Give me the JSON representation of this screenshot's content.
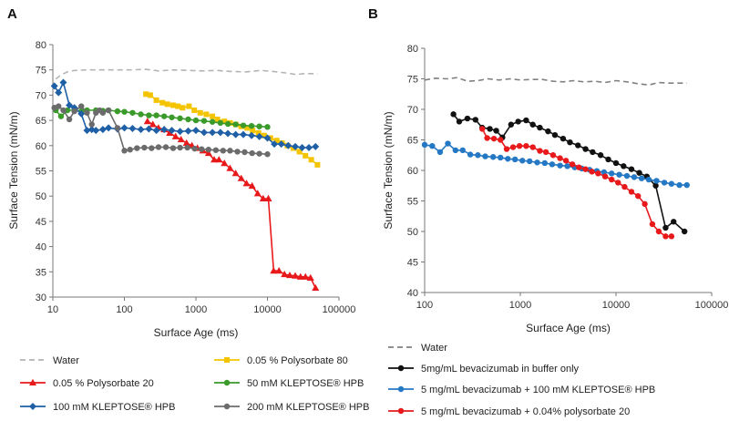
{
  "chart_data": [
    {
      "type": "line",
      "panel_label": "A",
      "xlabel": "Surface Age (ms)",
      "ylabel": "Surface Tension (mN/m)",
      "x_scale": "log",
      "xlim": [
        10,
        100000
      ],
      "ylim": [
        30,
        80
      ],
      "x_ticks": [
        10,
        100,
        1000,
        10000,
        100000
      ],
      "x_tick_labels": [
        "10",
        "100",
        "1000",
        "10000",
        "100000"
      ],
      "y_ticks": [
        30,
        35,
        40,
        45,
        50,
        55,
        60,
        65,
        70,
        75,
        80
      ],
      "y_tick_labels": [
        "30",
        "35",
        "40",
        "45",
        "50",
        "55",
        "60",
        "65",
        "70",
        "75",
        "80"
      ],
      "grid": false,
      "legend_position": "below",
      "series": [
        {
          "name": "Water",
          "color": "#b4b4b4",
          "style": "dashed",
          "marker": "none",
          "x": [
            11,
            13,
            16,
            20,
            30,
            50,
            80,
            120,
            200,
            300,
            500,
            800,
            1200,
            2000,
            3000,
            5000,
            8000,
            12000,
            18000,
            25000,
            35000,
            50000
          ],
          "y": [
            73.2,
            74.0,
            74.6,
            74.9,
            75.0,
            75.0,
            75.0,
            75.0,
            75.1,
            74.8,
            75.0,
            74.9,
            74.8,
            74.9,
            74.7,
            74.6,
            74.9,
            74.7,
            74.4,
            74.1,
            74.3,
            74.2
          ]
        },
        {
          "name": "0.05 % Polysorbate 80",
          "color": "#f5c400",
          "style": "solid",
          "marker": "square",
          "x": [
            200,
            230,
            280,
            340,
            400,
            480,
            560,
            650,
            800,
            950,
            1150,
            1400,
            1700,
            2000,
            2500,
            3000,
            3600,
            4300,
            5200,
            6200,
            7500,
            9000,
            11000,
            13500,
            16000,
            19000,
            23000,
            28000,
            34000,
            41000,
            50000
          ],
          "y": [
            70.2,
            70.0,
            69.0,
            68.5,
            68.2,
            68.0,
            67.8,
            67.5,
            67.8,
            67.0,
            66.5,
            66.2,
            65.8,
            65.2,
            64.8,
            64.5,
            64.2,
            63.8,
            63.5,
            63.0,
            62.5,
            62.0,
            61.5,
            61.0,
            60.5,
            60.0,
            59.5,
            58.8,
            58.0,
            57.2,
            56.2
          ]
        },
        {
          "name": "0.05 % Polysorbate 20",
          "color": "#e8191b",
          "style": "solid",
          "marker": "triangle",
          "x": [
            210,
            250,
            300,
            360,
            430,
            520,
            620,
            740,
            880,
            1050,
            1250,
            1500,
            1800,
            2100,
            2500,
            3000,
            3600,
            4300,
            5100,
            6100,
            7300,
            8700,
            10300,
            12200,
            14500,
            17300,
            20500,
            24500,
            29000,
            34000,
            40000,
            47000
          ],
          "y": [
            64.8,
            64.2,
            63.5,
            63.2,
            62.5,
            61.8,
            61.2,
            60.5,
            60.0,
            59.5,
            59.0,
            58.5,
            57.2,
            57.2,
            56.5,
            55.5,
            54.5,
            53.5,
            52.5,
            52.0,
            50.5,
            49.5,
            49.5,
            35.2,
            35.2,
            34.5,
            34.3,
            34.2,
            34.0,
            34.0,
            33.8,
            31.8
          ]
        },
        {
          "name": "50 mM KLEPTOSE® HPB",
          "color": "#3a9a2a",
          "style": "solid",
          "marker": "circle",
          "x": [
            11,
            13,
            16,
            20,
            25,
            30,
            40,
            50,
            60,
            80,
            100,
            130,
            170,
            220,
            280,
            360,
            460,
            600,
            780,
            1000,
            1300,
            1700,
            2200,
            2800,
            3600,
            4600,
            6000,
            7700,
            10000
          ],
          "y": [
            67.0,
            65.8,
            67.0,
            67.0,
            66.8,
            67.0,
            67.0,
            66.9,
            67.0,
            66.8,
            66.7,
            66.5,
            66.2,
            66.0,
            66.0,
            65.8,
            65.6,
            65.4,
            65.2,
            65.0,
            64.9,
            64.7,
            64.5,
            64.3,
            64.2,
            64.0,
            63.9,
            63.8,
            63.7
          ]
        },
        {
          "name": "100 mM KLEPTOSE® HPB",
          "color": "#1f5fa6",
          "style": "solid",
          "marker": "diamond",
          "x": [
            10.5,
            12,
            14,
            17,
            20,
            25,
            30,
            35,
            40,
            50,
            60,
            80,
            100,
            130,
            170,
            220,
            280,
            360,
            460,
            600,
            780,
            1000,
            1300,
            1700,
            2200,
            2800,
            3600,
            4600,
            6000,
            7700,
            10000,
            12500,
            15600,
            19500,
            24500,
            30500,
            38000,
            47000
          ],
          "y": [
            71.8,
            70.5,
            72.5,
            68.0,
            67.5,
            66.3,
            63.0,
            63.2,
            63.0,
            63.2,
            63.5,
            63.3,
            63.5,
            63.4,
            63.2,
            63.3,
            63.0,
            63.2,
            63.0,
            62.8,
            62.9,
            63.0,
            62.6,
            62.6,
            62.6,
            62.4,
            62.2,
            62.2,
            62.0,
            61.8,
            61.5,
            60.3,
            60.3,
            60.0,
            59.8,
            59.6,
            59.6,
            59.8
          ]
        },
        {
          "name": "200 mM KLEPTOSE® HPB",
          "color": "#6b6b6b",
          "style": "solid",
          "marker": "circle",
          "x": [
            10.5,
            12,
            14,
            17,
            20,
            25,
            30,
            35,
            40,
            45,
            50,
            60,
            80,
            100,
            120,
            150,
            190,
            240,
            300,
            380,
            480,
            600,
            760,
            960,
            1200,
            1500,
            1900,
            2400,
            3000,
            3800,
            4800,
            6100,
            7700,
            10000
          ],
          "y": [
            67.5,
            67.8,
            67.0,
            65.2,
            66.8,
            67.8,
            66.5,
            64.2,
            66.5,
            67.0,
            66.5,
            67.0,
            63.5,
            59.0,
            59.2,
            59.5,
            59.6,
            59.5,
            59.7,
            59.7,
            59.5,
            59.6,
            59.6,
            59.4,
            59.3,
            59.2,
            59.1,
            59.0,
            59.0,
            58.8,
            58.7,
            58.5,
            58.4,
            58.3
          ]
        }
      ]
    },
    {
      "type": "line",
      "panel_label": "B",
      "xlabel": "Surface Age (ms)",
      "ylabel": "Surface Tension (mN/m)",
      "x_scale": "log",
      "xlim": [
        100,
        100000
      ],
      "ylim": [
        40,
        80
      ],
      "x_ticks": [
        100,
        1000,
        10000,
        100000
      ],
      "x_tick_labels": [
        "100",
        "1000",
        "10000",
        "100000"
      ],
      "y_ticks": [
        40,
        45,
        50,
        55,
        60,
        65,
        70,
        75,
        80
      ],
      "y_tick_labels": [
        "40",
        "45",
        "50",
        "55",
        "60",
        "65",
        "70",
        "75",
        "80"
      ],
      "grid": false,
      "legend_position": "below",
      "series": [
        {
          "name": "Water",
          "color": "#808080",
          "style": "dashed",
          "marker": "none",
          "x": [
            100,
            130,
            170,
            220,
            280,
            360,
            460,
            600,
            780,
            1000,
            1300,
            1700,
            2200,
            2800,
            3600,
            4600,
            6000,
            7700,
            10000,
            13000,
            17000,
            22000,
            28000,
            36000,
            46000,
            55000
          ],
          "y": [
            74.8,
            75.1,
            75.0,
            75.2,
            74.6,
            74.7,
            75.0,
            74.8,
            75.0,
            74.8,
            74.9,
            74.9,
            74.6,
            74.5,
            74.7,
            74.5,
            74.6,
            74.4,
            74.7,
            74.5,
            74.2,
            74.0,
            74.4,
            74.3,
            74.3,
            74.3
          ]
        },
        {
          "name": "5mg/mL bevacizumab in buffer only",
          "color": "#111111",
          "style": "solid",
          "marker": "circle",
          "x": [
            200,
            230,
            280,
            340,
            400,
            480,
            560,
            650,
            800,
            950,
            1150,
            1350,
            1600,
            1950,
            2300,
            2800,
            3300,
            4000,
            4800,
            5700,
            6900,
            8300,
            10000,
            12000,
            14500,
            17500,
            21000,
            26000,
            33000,
            40000,
            52000
          ],
          "y": [
            69.2,
            68.0,
            68.5,
            68.3,
            67.0,
            66.8,
            66.5,
            65.4,
            67.5,
            68.0,
            68.2,
            67.5,
            67.0,
            66.4,
            65.8,
            65.2,
            64.6,
            64.1,
            63.5,
            63.0,
            62.5,
            61.8,
            61.2,
            60.7,
            60.2,
            59.6,
            59.0,
            57.5,
            50.6,
            51.6,
            50.0
          ]
        },
        {
          "name": "5 mg/mL bevacizumab + 100 mM KLEPTOSE® HPB",
          "color": "#2478c4",
          "style": "solid",
          "marker": "circle",
          "x": [
            100,
            120,
            145,
            175,
            210,
            250,
            300,
            360,
            430,
            520,
            620,
            740,
            880,
            1050,
            1250,
            1500,
            1800,
            2150,
            2600,
            3100,
            3700,
            4400,
            5300,
            6300,
            7500,
            9000,
            10800,
            13000,
            15500,
            18500,
            22000,
            26500,
            32000,
            38000,
            46000,
            55000
          ],
          "y": [
            64.2,
            64.0,
            63.0,
            64.4,
            63.3,
            63.3,
            62.6,
            62.5,
            62.3,
            62.2,
            62.1,
            61.9,
            61.8,
            61.6,
            61.5,
            61.3,
            61.2,
            61.0,
            60.8,
            60.7,
            60.5,
            60.3,
            60.1,
            59.9,
            59.7,
            59.5,
            59.3,
            59.1,
            58.9,
            58.7,
            58.5,
            58.3,
            58.0,
            57.8,
            57.6,
            57.6
          ]
        },
        {
          "name": "5 mg/mL bevacizumab + 0.04% polysorbate 20",
          "color": "#e8191b",
          "style": "solid",
          "marker": "circle",
          "x": [
            400,
            450,
            530,
            620,
            720,
            840,
            980,
            1150,
            1350,
            1600,
            1850,
            2200,
            2600,
            3000,
            3500,
            4100,
            4800,
            5600,
            6500,
            7700,
            9000,
            10500,
            12300,
            14500,
            17000,
            20000,
            24000,
            28000,
            33000,
            38000
          ],
          "y": [
            66.8,
            65.3,
            65.2,
            65.0,
            63.5,
            63.8,
            64.0,
            64.0,
            63.8,
            63.2,
            63.0,
            62.5,
            62.0,
            61.6,
            61.0,
            60.5,
            60.2,
            59.8,
            59.5,
            59.0,
            58.5,
            58.0,
            57.3,
            56.5,
            55.8,
            54.5,
            51.2,
            50.0,
            49.2,
            49.2
          ]
        }
      ]
    }
  ]
}
